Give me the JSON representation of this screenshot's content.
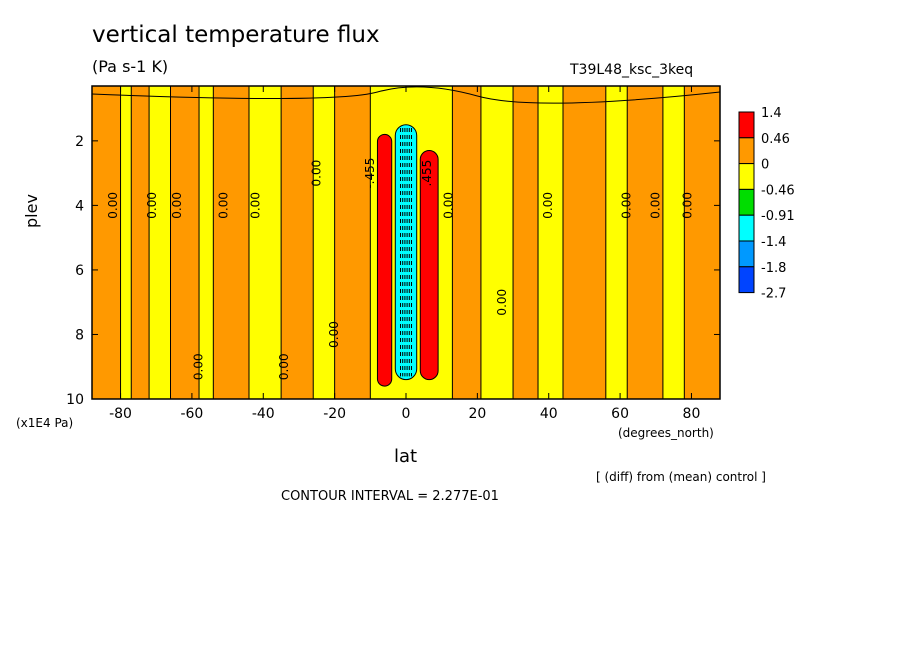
{
  "header": {
    "title": "vertical temperature flux",
    "units": "(Pa s-1 K)",
    "run_id": "T39L48_ksc_3keq"
  },
  "footer": {
    "note": "[ (diff) from (mean) control ]",
    "contour_interval": "CONTOUR INTERVAL = 2.277E-01"
  },
  "chart_data": {
    "type": "heatmap",
    "xlabel": "lat",
    "x_unit": "(degrees_north)",
    "ylabel": "plev",
    "y_unit": "(x1E4 Pa)",
    "xlim": [
      -88,
      88
    ],
    "ylim": [
      10,
      0.3
    ],
    "x_ticks": [
      -80,
      -60,
      -40,
      -20,
      0,
      20,
      40,
      60,
      80
    ],
    "y_ticks": [
      2,
      4,
      6,
      8,
      10
    ],
    "colorbar": {
      "labels": [
        "1.4",
        "0.46",
        "0",
        "-0.46",
        "-0.91",
        "-1.4",
        "-1.8",
        "-2.7"
      ],
      "colors": [
        "#ff0000",
        "#ff9900",
        "#ffff00",
        "#00dd00",
        "#00ffff",
        "#0099ff",
        "#0044ff"
      ]
    },
    "bands": [
      {
        "lat": [
          -88,
          -80
        ],
        "color": "#ff9900"
      },
      {
        "lat": [
          -77,
          -72
        ],
        "color": "#ff9900"
      },
      {
        "lat": [
          -66,
          -58
        ],
        "color": "#ff9900"
      },
      {
        "lat": [
          -54,
          -44
        ],
        "color": "#ff9900"
      },
      {
        "lat": [
          -35,
          -26
        ],
        "color": "#ff9900"
      },
      {
        "lat": [
          -20,
          -10
        ],
        "color": "#ff9900"
      },
      {
        "lat": [
          -8,
          -4
        ],
        "color": "#ff0000",
        "plev": [
          1.8,
          9.6
        ]
      },
      {
        "lat": [
          -3,
          3
        ],
        "color": "#00ffff",
        "plev": [
          1.5,
          9.4
        ]
      },
      {
        "lat": [
          4,
          9
        ],
        "color": "#ff0000",
        "plev": [
          2.3,
          9.4
        ]
      },
      {
        "lat": [
          13,
          21
        ],
        "color": "#ff9900"
      },
      {
        "lat": [
          30,
          37
        ],
        "color": "#ff9900"
      },
      {
        "lat": [
          44,
          56
        ],
        "color": "#ff9900"
      },
      {
        "lat": [
          62,
          72
        ],
        "color": "#ff9900"
      },
      {
        "lat": [
          78,
          88
        ],
        "color": "#ff9900"
      }
    ],
    "contour_labels": [
      {
        "text": "0.00",
        "lat": -82,
        "plev": 4
      },
      {
        "text": "0.00",
        "lat": -71,
        "plev": 4
      },
      {
        "text": "0.00",
        "lat": -64,
        "plev": 4
      },
      {
        "text": "0.00",
        "lat": -51,
        "plev": 4
      },
      {
        "text": "0.00",
        "lat": -42,
        "plev": 4
      },
      {
        "text": "0.00",
        "lat": -25,
        "plev": 3
      },
      {
        "text": "-.455",
        "lat": -10,
        "plev": 3
      },
      {
        "text": ".455",
        "lat": 6,
        "plev": 3
      },
      {
        "text": "0.00",
        "lat": 12,
        "plev": 4
      },
      {
        "text": "0.00",
        "lat": 40,
        "plev": 4
      },
      {
        "text": "0.00",
        "lat": 62,
        "plev": 4
      },
      {
        "text": "0.00",
        "lat": 70,
        "plev": 4
      },
      {
        "text": "0.00",
        "lat": 79,
        "plev": 4
      },
      {
        "text": "0.00",
        "lat": -20,
        "plev": 8
      },
      {
        "text": "0.00",
        "lat": -58,
        "plev": 9
      },
      {
        "text": "0.00",
        "lat": -34,
        "plev": 9
      },
      {
        "text": "0.00",
        "lat": 27,
        "plev": 7
      }
    ]
  }
}
